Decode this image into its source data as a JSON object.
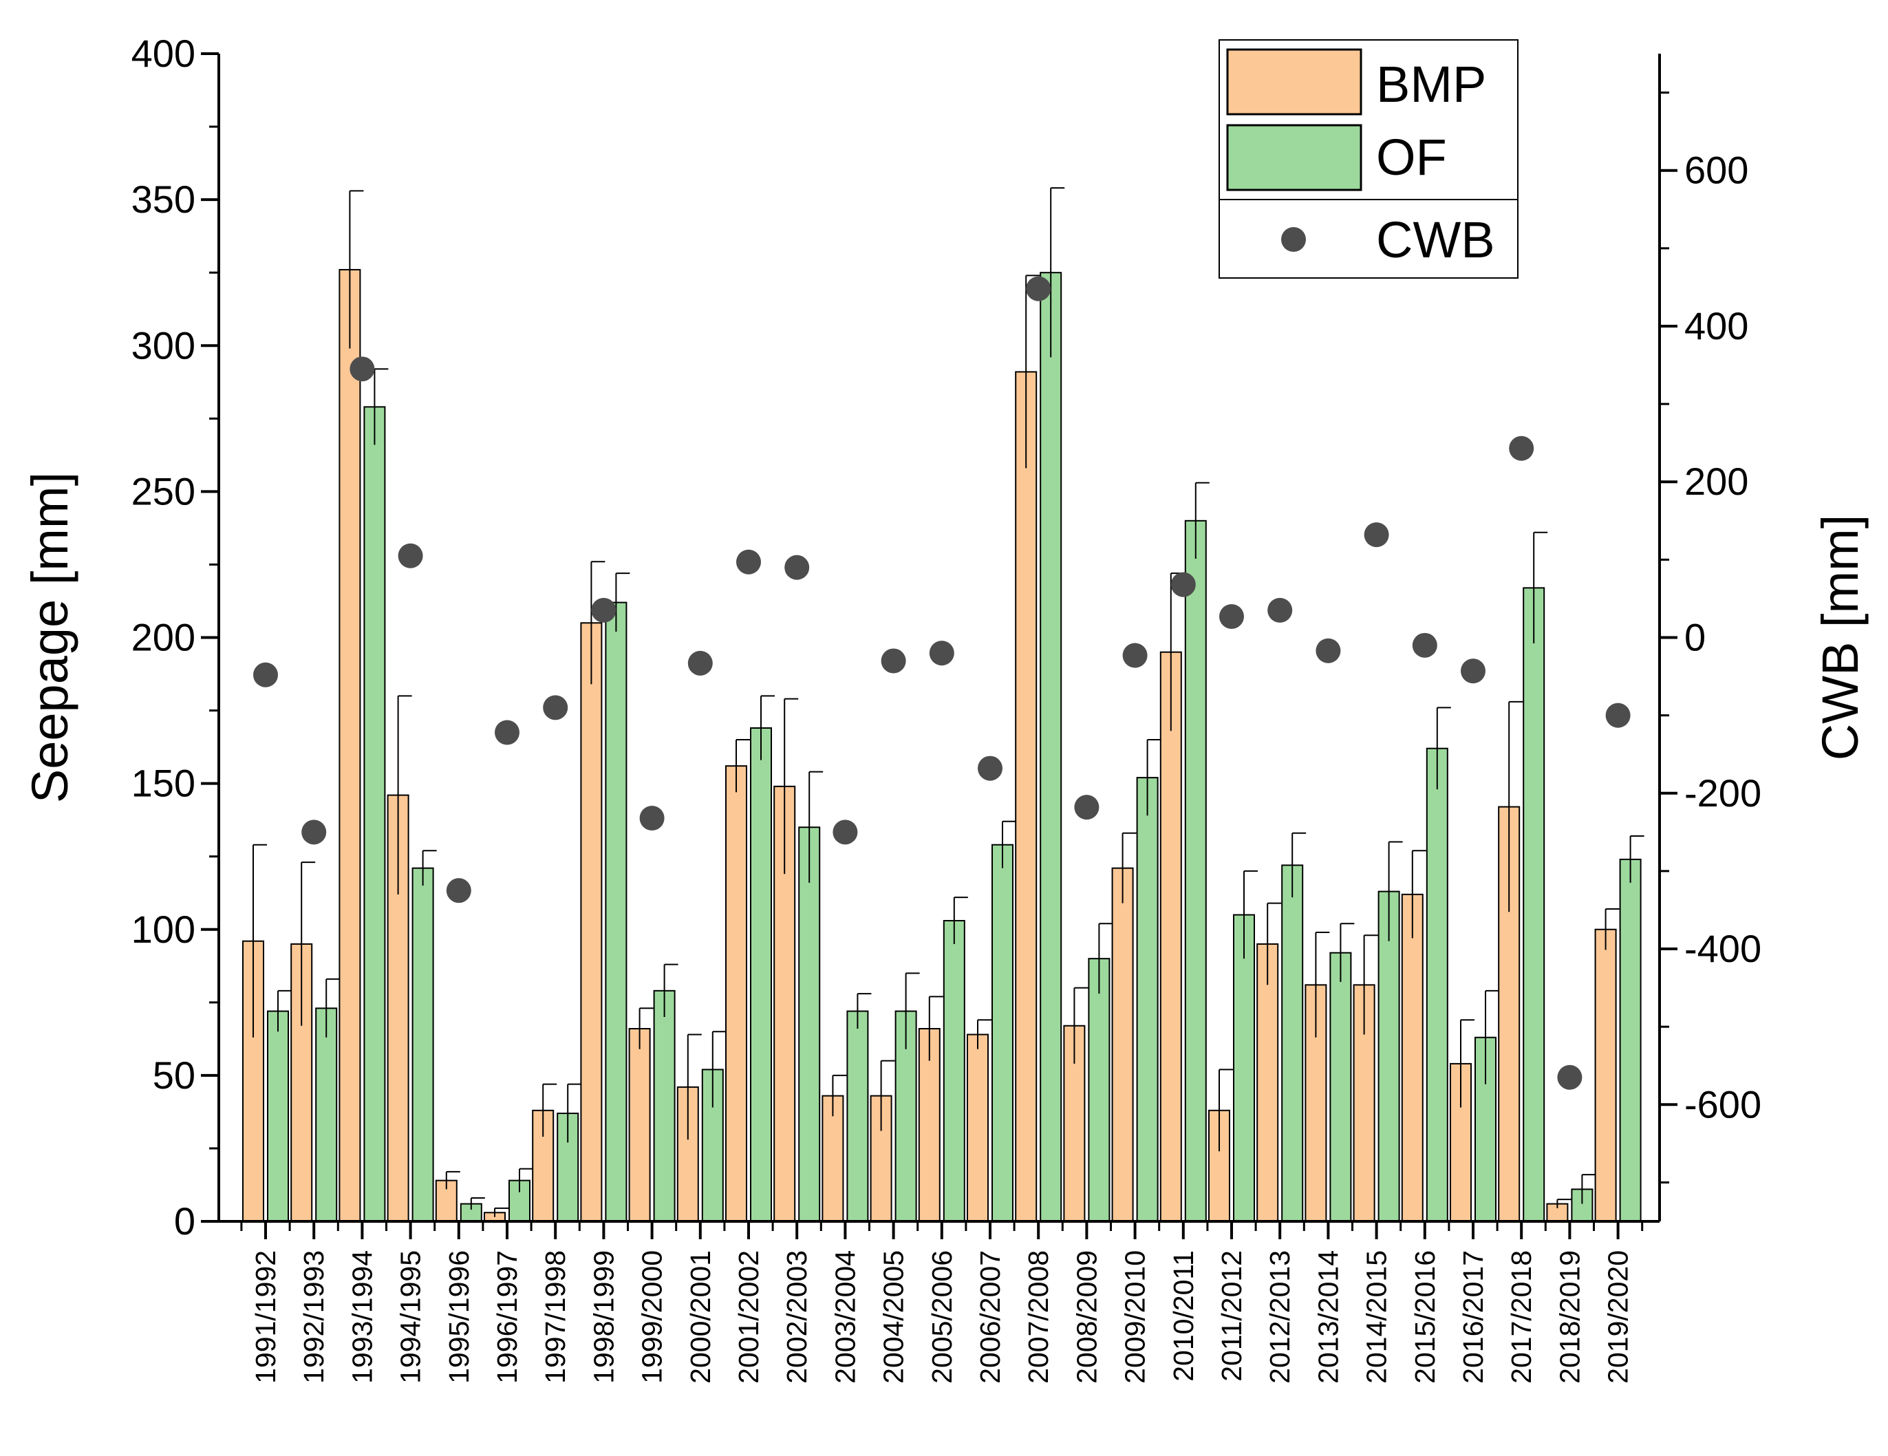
{
  "chart_data": {
    "type": "bar",
    "title": "",
    "xlabel": "",
    "ylabel": "Seepage [mm]",
    "y2label": "CWB [mm]",
    "ylim": [
      0,
      400
    ],
    "y2lim": [
      -750,
      750
    ],
    "yticks": [
      0,
      50,
      100,
      150,
      200,
      250,
      300,
      350,
      400
    ],
    "y2ticks": [
      -600,
      -400,
      -200,
      0,
      200,
      400,
      600
    ],
    "grid": false,
    "legend_position": "top-right",
    "categories": [
      "1991/1992",
      "1992/1993",
      "1993/1994",
      "1994/1995",
      "1995/1996",
      "1996/1997",
      "1997/1998",
      "1998/1999",
      "1999/2000",
      "2000/2001",
      "2001/2002",
      "2002/2003",
      "2003/2004",
      "2004/2005",
      "2005/2006",
      "2006/2007",
      "2007/2008",
      "2008/2009",
      "2009/2010",
      "2010/2011",
      "2011/2012",
      "2012/2013",
      "2013/2014",
      "2014/2015",
      "2015/2016",
      "2016/2017",
      "2017/2018",
      "2018/2019",
      "2019/2020"
    ],
    "series": [
      {
        "name": "BMP",
        "kind": "bar",
        "axis": "left",
        "color": "#FCC896",
        "values": [
          96,
          95,
          326,
          146,
          14,
          3,
          38,
          205,
          66,
          46,
          156,
          149,
          43,
          43,
          66,
          64,
          291,
          67,
          121,
          195,
          38,
          95,
          81,
          81,
          112,
          54,
          142,
          6,
          100
        ],
        "errors": [
          33,
          28,
          27,
          34,
          3,
          1.5,
          9,
          21,
          7,
          18,
          9,
          30,
          7,
          12,
          11,
          5,
          33,
          13,
          12,
          27,
          14,
          14,
          18,
          17,
          15,
          15,
          36,
          1.5,
          7
        ]
      },
      {
        "name": "OF",
        "kind": "bar",
        "axis": "left",
        "color": "#9DD99D",
        "values": [
          72,
          73,
          279,
          121,
          6,
          14,
          37,
          212,
          79,
          52,
          169,
          135,
          72,
          72,
          103,
          129,
          325,
          90,
          152,
          240,
          105,
          122,
          92,
          113,
          162,
          63,
          217,
          11,
          124
        ],
        "errors": [
          7,
          10,
          13,
          6,
          2,
          4,
          10,
          10,
          9,
          13,
          11,
          19,
          6,
          13,
          8,
          8,
          29,
          12,
          13,
          13,
          15,
          11,
          10,
          17,
          14,
          16,
          19,
          5,
          8
        ]
      },
      {
        "name": "CWB",
        "kind": "scatter",
        "axis": "right",
        "color": "#4D4D4D",
        "values": [
          -48,
          -250,
          345,
          105,
          -325,
          -122,
          -90,
          35,
          -232,
          -33,
          97,
          90,
          -250,
          -30,
          -20,
          -168,
          448,
          -218,
          -23,
          68,
          27,
          35,
          -17,
          132,
          -10,
          -43,
          243,
          -565,
          -100
        ]
      }
    ]
  }
}
